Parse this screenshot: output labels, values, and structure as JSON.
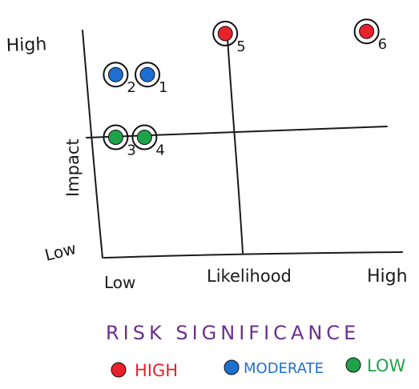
{
  "chart_data": {
    "type": "scatter",
    "title": "RISK SIGNIFICANCE",
    "xlabel": "Likelihood",
    "ylabel": "Impact",
    "x_ticks": {
      "low": "Low",
      "high": "High"
    },
    "y_ticks": {
      "low": "Low",
      "high": "High"
    },
    "xlim": [
      0,
      1
    ],
    "ylim": [
      0,
      1
    ],
    "legend": [
      {
        "label": "HIGH",
        "color": "#e8212b"
      },
      {
        "label": "MODERATE",
        "color": "#1e6fd0"
      },
      {
        "label": "LOW",
        "color": "#1ea34a"
      }
    ],
    "points": [
      {
        "label": "1",
        "x": 0.15,
        "y": 0.84,
        "level": "MODERATE",
        "color": "#1e6fd0"
      },
      {
        "label": "2",
        "x": 0.04,
        "y": 0.84,
        "level": "MODERATE",
        "color": "#1e6fd0"
      },
      {
        "label": "3",
        "x": 0.04,
        "y": 0.55,
        "level": "LOW",
        "color": "#1ea34a"
      },
      {
        "label": "4",
        "x": 0.14,
        "y": 0.55,
        "level": "LOW",
        "color": "#1ea34a"
      },
      {
        "label": "5",
        "x": 0.42,
        "y": 1.03,
        "level": "HIGH",
        "color": "#e8212b"
      },
      {
        "label": "6",
        "x": 0.91,
        "y": 1.04,
        "level": "HIGH",
        "color": "#e8212b"
      }
    ]
  }
}
